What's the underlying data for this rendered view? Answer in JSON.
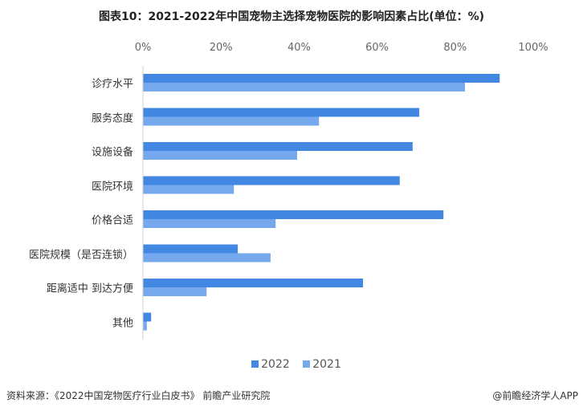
{
  "title": "图表10：2021-2022年中国宠物主选择宠物医院的影响因素占比(单位：%)",
  "chart_data": {
    "type": "bar",
    "orientation": "horizontal",
    "title": "图表10：2021-2022年中国宠物主选择宠物医院的影响因素占比(单位：%)",
    "categories": [
      "诊疗水平",
      "服务态度",
      "设施设备",
      "医院环境",
      "价格合适",
      "医院规模（是否连锁）",
      "距离适中 到达方便",
      "其他"
    ],
    "series": [
      {
        "name": "2022",
        "color": "#4287e2",
        "values": [
          91.4,
          70.8,
          69.1,
          65.8,
          77.0,
          24.3,
          56.4,
          2.1
        ]
      },
      {
        "name": "2021",
        "color": "#75a8ec",
        "values": [
          82.5,
          45.1,
          39.5,
          23.3,
          34.0,
          32.7,
          16.3,
          1.0
        ]
      }
    ],
    "xlim": [
      0,
      100
    ],
    "tick_labels": [
      "0%",
      "20%",
      "40%",
      "60%",
      "80%",
      "100%"
    ],
    "tick_values": [
      0,
      20,
      40,
      60,
      80,
      100
    ],
    "legend": "bottom",
    "grid": false
  },
  "footer": {
    "source": "资料来源：《2022中国宠物医疗行业白皮书》 前瞻产业研究院",
    "credit": "@前瞻经济学人APP"
  },
  "watermark": "前瞻产业研究院"
}
